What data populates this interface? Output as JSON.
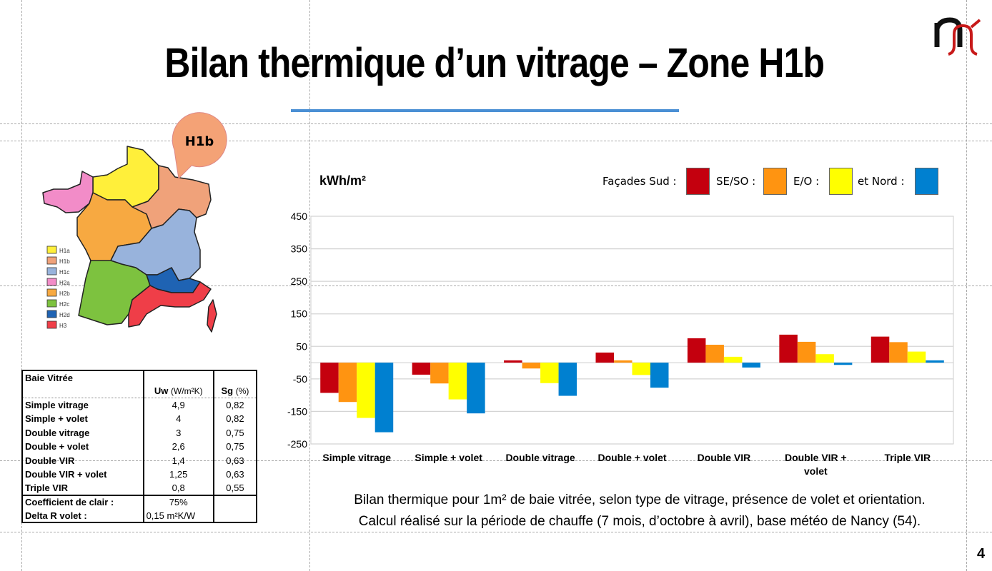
{
  "title": "Bilan thermique d’un vitrage – Zone H1b",
  "map": {
    "callout": "H1b",
    "legend": [
      {
        "label": "H1a",
        "color": "#ffef3a"
      },
      {
        "label": "H1b",
        "color": "#f0a27a"
      },
      {
        "label": "H1c",
        "color": "#98b3dc"
      },
      {
        "label": "H2a",
        "color": "#f28cc8"
      },
      {
        "label": "H2b",
        "color": "#f7a941"
      },
      {
        "label": "H2c",
        "color": "#7dc23f"
      },
      {
        "label": "H2d",
        "color": "#1f63b3"
      },
      {
        "label": "H3",
        "color": "#ef3e48"
      }
    ]
  },
  "table": {
    "title": "Baie Vitrée",
    "col_uw": "Uw",
    "col_uw_unit": "(W/m²K)",
    "col_sg": "Sg",
    "col_sg_unit": "(%)",
    "rows": [
      [
        "Simple vitrage",
        "4,9",
        "0,82"
      ],
      [
        "Simple + volet",
        "4",
        "0,82"
      ],
      [
        "Double vitrage",
        "3",
        "0,75"
      ],
      [
        "Double + volet",
        "2,6",
        "0,75"
      ],
      [
        "Double VIR",
        "1,4",
        "0,63"
      ],
      [
        "Double VIR + volet",
        "1,25",
        "0,63"
      ],
      [
        "Triple VIR",
        "0,8",
        "0,55"
      ]
    ],
    "coef_label": "Coefficient de clair :",
    "coef_value": "75%",
    "delta_label": "Delta R volet :",
    "delta_value": "0,15 m²K/W"
  },
  "chart_data": {
    "type": "bar",
    "ylabel": "kWh/m²",
    "ylim": [
      -250,
      450
    ],
    "yticks": [
      450,
      350,
      250,
      150,
      50,
      -50,
      -150,
      -250
    ],
    "grid": true,
    "legend_prefix": "Façades Sud :",
    "categories": [
      "Simple vitrage",
      "Simple + volet",
      "Double vitrage",
      "Double + volet",
      "Double VIR",
      "Double VIR + volet",
      "Triple VIR"
    ],
    "series": [
      {
        "name": "SE/SO :",
        "color": "#c4000e",
        "values": [
          -93,
          -37,
          7,
          31,
          75,
          86,
          80
        ]
      },
      {
        "name": "E/O :",
        "color": "#ff9411",
        "values": [
          -121,
          -64,
          -18,
          7,
          55,
          64,
          63
        ]
      },
      {
        "name": "et Nord :",
        "color": "#ffff00",
        "values": [
          -170,
          -113,
          -63,
          -38,
          18,
          26,
          34
        ]
      },
      {
        "name": "",
        "color": "#0080d0",
        "values": [
          -214,
          -156,
          -102,
          -77,
          -15,
          -7,
          7
        ]
      }
    ]
  },
  "caption": [
    "Bilan thermique pour 1m² de baie vitrée, selon type de vitrage, présence de volet et orientation.",
    "Calcul réalisé sur la période de chauffe (7 mois, d’octobre à avril), base météo de Nancy (54)."
  ],
  "page_number": "4"
}
